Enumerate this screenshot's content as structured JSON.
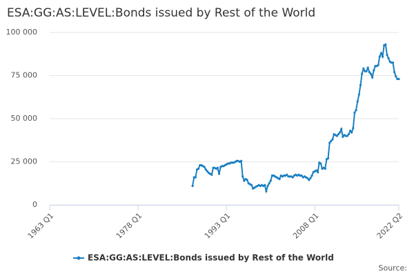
{
  "chart_data": {
    "type": "line",
    "title": "ESA:GG:AS:LEVEL:Bonds issued by Rest of the World",
    "source": "Source:",
    "x": [
      "1987 Q2",
      "1987 Q3",
      "1987 Q4",
      "1988 Q1",
      "1988 Q2",
      "1988 Q3",
      "1988 Q4",
      "1989 Q1",
      "1989 Q2",
      "1989 Q3",
      "1989 Q4",
      "1990 Q1",
      "1990 Q2",
      "1990 Q3",
      "1990 Q4",
      "1991 Q1",
      "1991 Q2",
      "1991 Q3",
      "1991 Q4",
      "1992 Q1",
      "1992 Q2",
      "1992 Q3",
      "1992 Q4",
      "1993 Q1",
      "1993 Q2",
      "1993 Q3",
      "1993 Q4",
      "1994 Q1",
      "1994 Q2",
      "1994 Q3",
      "1994 Q4",
      "1995 Q1",
      "1995 Q2",
      "1995 Q3",
      "1995 Q4",
      "1996 Q1",
      "1996 Q2",
      "1996 Q3",
      "1996 Q4",
      "1997 Q1",
      "1997 Q2",
      "1997 Q3",
      "1997 Q4",
      "1998 Q1",
      "1998 Q2",
      "1998 Q3",
      "1998 Q4",
      "1999 Q1",
      "1999 Q2",
      "1999 Q3",
      "1999 Q4",
      "2000 Q1",
      "2000 Q2",
      "2000 Q3",
      "2000 Q4",
      "2001 Q1",
      "2001 Q2",
      "2001 Q3",
      "2001 Q4",
      "2002 Q1",
      "2002 Q2",
      "2002 Q3",
      "2002 Q4",
      "2003 Q1",
      "2003 Q2",
      "2003 Q3",
      "2003 Q4",
      "2004 Q1",
      "2004 Q2",
      "2004 Q3",
      "2004 Q4",
      "2005 Q1",
      "2005 Q2",
      "2005 Q3",
      "2005 Q4",
      "2006 Q1",
      "2006 Q2",
      "2006 Q3",
      "2006 Q4",
      "2007 Q1",
      "2007 Q2",
      "2007 Q3",
      "2007 Q4",
      "2008 Q1",
      "2008 Q2",
      "2008 Q3",
      "2008 Q4",
      "2009 Q1",
      "2009 Q2",
      "2009 Q3",
      "2009 Q4",
      "2010 Q1",
      "2010 Q2",
      "2010 Q3",
      "2010 Q4",
      "2011 Q1",
      "2011 Q2",
      "2011 Q3",
      "2011 Q4",
      "2012 Q1",
      "2012 Q2",
      "2012 Q3",
      "2012 Q4",
      "2013 Q1",
      "2013 Q2",
      "2013 Q3",
      "2013 Q4",
      "2014 Q1",
      "2014 Q2",
      "2014 Q3",
      "2014 Q4",
      "2015 Q1",
      "2015 Q2",
      "2015 Q3",
      "2015 Q4",
      "2016 Q1",
      "2016 Q2",
      "2016 Q3",
      "2016 Q4",
      "2017 Q1",
      "2017 Q2",
      "2017 Q3",
      "2017 Q4",
      "2018 Q1",
      "2018 Q2",
      "2018 Q3",
      "2018 Q4",
      "2019 Q1",
      "2019 Q2",
      "2019 Q3",
      "2019 Q4",
      "2020 Q1",
      "2020 Q2",
      "2020 Q3",
      "2020 Q4",
      "2021 Q1",
      "2021 Q2",
      "2021 Q3",
      "2021 Q4",
      "2022 Q1",
      "2022 Q2"
    ],
    "series": [
      {
        "name": "ESA:GG:AS:LEVEL:Bonds issued by Rest of the World",
        "color": "#1a7fc1",
        "values": [
          11000,
          16000,
          16000,
          20500,
          21000,
          23000,
          23000,
          22500,
          22000,
          20500,
          19500,
          18500,
          18000,
          17500,
          21500,
          21500,
          21000,
          21500,
          18000,
          22000,
          22500,
          22500,
          23000,
          23500,
          24000,
          24000,
          24500,
          24500,
          24500,
          25000,
          25500,
          25500,
          25000,
          25500,
          16500,
          14000,
          15000,
          14500,
          12500,
          12000,
          11500,
          9500,
          10000,
          10500,
          11000,
          11500,
          11000,
          11500,
          11000,
          11500,
          8000,
          11000,
          12500,
          14000,
          17000,
          17000,
          16500,
          16000,
          15500,
          15000,
          17000,
          16500,
          17000,
          17000,
          17500,
          16500,
          16500,
          16500,
          16000,
          17000,
          17500,
          17000,
          17500,
          17000,
          17000,
          16000,
          16500,
          16000,
          15500,
          14500,
          15500,
          17000,
          19000,
          19500,
          20000,
          19000,
          24500,
          24000,
          21000,
          21500,
          21000,
          26500,
          27000,
          36000,
          37000,
          38000,
          41000,
          40500,
          40000,
          41000,
          42000,
          44000,
          39500,
          40500,
          40000,
          40000,
          41000,
          43000,
          42000,
          44500,
          53500,
          55000,
          60000,
          64000,
          69500,
          76000,
          79000,
          77500,
          77500,
          79500,
          77000,
          76000,
          74000,
          78000,
          80500,
          80500,
          81000,
          86000,
          88000,
          86000,
          92500,
          93000,
          87000,
          85000,
          83000,
          82500,
          82500,
          77000,
          74500,
          73000,
          73000
        ]
      }
    ],
    "xlim": [
      "1963 Q1",
      "2022 Q2"
    ],
    "xticks": [
      "1963 Q1",
      "1978 Q1",
      "1993 Q1",
      "2008 Q1",
      "2022 Q2"
    ],
    "ylim": [
      0,
      100000
    ],
    "yticks": [
      0,
      {
        "value": 25000,
        "label": "25 000"
      },
      {
        "value": 50000,
        "label": "50 000"
      },
      {
        "value": 75000,
        "label": "75 000"
      },
      {
        "value": 100000,
        "label": "100 000"
      }
    ],
    "grid": true
  }
}
